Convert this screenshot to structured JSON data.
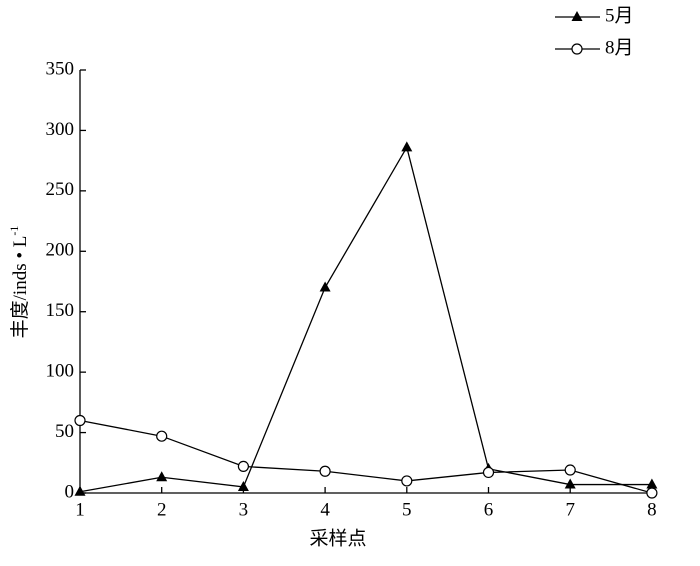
{
  "chart_data": {
    "type": "line",
    "ylabel": "丰度/inds • L",
    "ylabel_sup": "-1",
    "xlabel": "采样点",
    "categories": [
      "1",
      "2",
      "3",
      "4",
      "5",
      "6",
      "7",
      "8"
    ],
    "series": [
      {
        "name": "5月",
        "color": "#000000",
        "marker": "triangle",
        "values": [
          1,
          13,
          5,
          170,
          286,
          20,
          7,
          7
        ]
      },
      {
        "name": "8月",
        "color": "#000000",
        "marker": "circle",
        "values": [
          60,
          47,
          22,
          18,
          10,
          17,
          19,
          0
        ]
      }
    ],
    "ylim": [
      0,
      350
    ],
    "yticks": [
      0,
      50,
      100,
      150,
      200,
      250,
      300,
      350
    ],
    "legend": "upper right",
    "grid": false
  }
}
